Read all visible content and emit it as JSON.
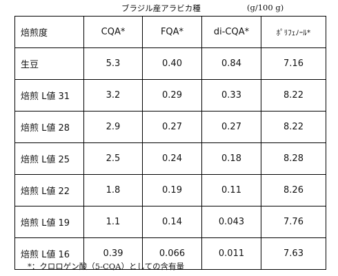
{
  "caption": {
    "title": "ブラジル産アラビカ種",
    "unit": "(g/100 g)"
  },
  "table": {
    "headers": [
      "焙煎度",
      "CQA*",
      "FQA*",
      "di-CQA*",
      "ﾎﾟﾘﾌｪﾉｰﾙ*"
    ],
    "rows": [
      [
        "生豆",
        "5.3",
        "0.40",
        "0.84",
        "7.16"
      ],
      [
        "焙煎 L値 31",
        "3.2",
        "0.29",
        "0.33",
        "8.22"
      ],
      [
        "焙煎 L値 28",
        "2.9",
        "0.27",
        "0.27",
        "8.22"
      ],
      [
        "焙煎 L値 25",
        "2.5",
        "0.24",
        "0.18",
        "8.28"
      ],
      [
        "焙煎 L値 22",
        "1.8",
        "0.19",
        "0.11",
        "8.26"
      ],
      [
        "焙煎 L値 19",
        "1.1",
        "0.14",
        "0.043",
        "7.76"
      ],
      [
        "焙煎 L値 16",
        "0.39",
        "0.066",
        "0.011",
        "7.63"
      ]
    ]
  },
  "footnote": "*：クロロゲン酸（5-CQA）としての含有量"
}
